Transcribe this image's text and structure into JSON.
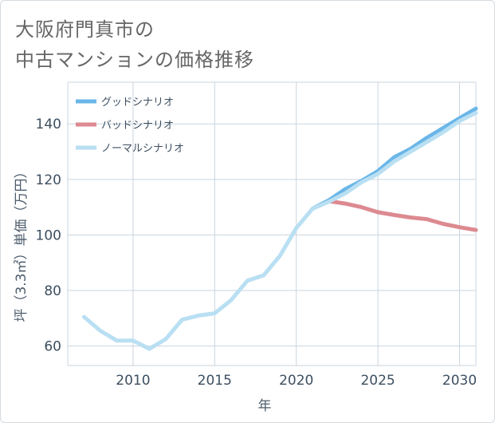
{
  "title_line1": "大阪府門真市の",
  "title_line2": "中古マンションの価格推移",
  "chart_data": {
    "type": "line",
    "title": "大阪府門真市の中古マンションの価格推移",
    "xlabel": "年",
    "ylabel": "坪（3.3㎡）単価（万円）",
    "xlim": [
      2006,
      2031
    ],
    "ylim": [
      53,
      155
    ],
    "x_ticks": [
      2010,
      2015,
      2020,
      2025,
      2030
    ],
    "y_ticks": [
      60,
      80,
      100,
      120,
      140
    ],
    "grid": true,
    "legend_position": "top-left",
    "series": [
      {
        "name": "グッドシナリオ",
        "color": "#6ab6e8",
        "x": [
          2021,
          2022,
          2023,
          2024,
          2025,
          2026,
          2027,
          2028,
          2029,
          2030,
          2031
        ],
        "y": [
          109.5,
          112.5,
          116.5,
          119.5,
          123,
          128,
          131,
          135,
          138.5,
          142,
          145.5
        ]
      },
      {
        "name": "バッドシナリオ",
        "color": "#dc8a90",
        "x": [
          2021,
          2022,
          2023,
          2024,
          2025,
          2026,
          2027,
          2028,
          2029,
          2030,
          2031
        ],
        "y": [
          109.5,
          112.2,
          111.3,
          110,
          108.2,
          107.2,
          106.3,
          105.7,
          104,
          102.8,
          101.8
        ]
      },
      {
        "name": "ノーマルシナリオ",
        "color": "#b9dff2",
        "x": [
          2007,
          2008,
          2009,
          2010,
          2011,
          2012,
          2013,
          2014,
          2015,
          2016,
          2017,
          2018,
          2019,
          2020,
          2021,
          2022,
          2023,
          2024,
          2025,
          2026,
          2027,
          2028,
          2029,
          2030,
          2031
        ],
        "y": [
          70.5,
          65.5,
          62,
          62,
          59,
          62.5,
          69.5,
          71,
          71.8,
          76.5,
          83.5,
          85.5,
          92.5,
          102.5,
          109.5,
          112,
          115,
          119,
          122,
          126.5,
          130,
          133.5,
          137,
          141,
          144
        ]
      }
    ]
  }
}
